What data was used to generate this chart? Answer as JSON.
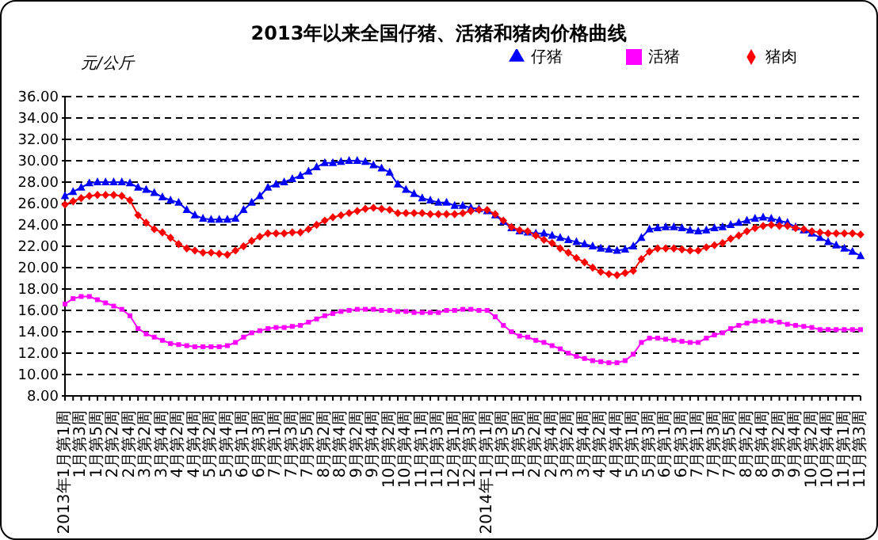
{
  "chart_data": {
    "type": "line",
    "title": "2013年以来全国仔猪、活猪和猪肉价格曲线",
    "ylabel": "元/公斤",
    "categories": [
      "2013年1月第1周",
      null,
      "1月第3周",
      null,
      "1月第5周",
      null,
      "2月第2周",
      null,
      "2月第4周",
      null,
      "3月第2周",
      null,
      "3月第4周",
      null,
      "4月第2周",
      null,
      "4月第4周",
      null,
      "5月第2周",
      null,
      "5月第4周",
      null,
      "6月第1周",
      null,
      "6月第3周",
      null,
      "7月第1周",
      null,
      "7月第3周",
      null,
      "7月第5周",
      null,
      "8月第2周",
      null,
      "8月第4周",
      null,
      "9月第2周",
      null,
      "9月第4周",
      null,
      "10月第2周",
      null,
      "10月第4周",
      null,
      "11月第1周",
      null,
      "11月第3周",
      null,
      "12月第1周",
      null,
      "12月第3周",
      null,
      "2014年1月第1周",
      null,
      "1月第3周",
      null,
      "1月第5周",
      null,
      "2月第2周",
      null,
      "2月第4周",
      null,
      "3月第2周",
      null,
      "3月第4周",
      null,
      "4月第2周",
      null,
      "4月第4周",
      null,
      "5月第1周",
      null,
      "5月第3周",
      null,
      "6月第1周",
      null,
      "6月第3周",
      null,
      "7月第1周",
      null,
      "7月第3周",
      null,
      "7月第5周",
      null,
      "8月第2周",
      null,
      "8月第4周",
      null,
      "9月第2周",
      null,
      "9月第4周",
      null,
      "10月第2周",
      null,
      "10月第4周",
      null,
      "11月第1周",
      null,
      "11月第3周"
    ],
    "series": [
      {
        "name": "仔猪",
        "color": "#0000ff",
        "marker": "triangle",
        "values": [
          26.7,
          27.1,
          27.5,
          27.9,
          28.0,
          28.0,
          28.0,
          28.0,
          27.9,
          27.5,
          27.3,
          27.0,
          26.6,
          26.3,
          26.1,
          25.4,
          24.9,
          24.6,
          24.5,
          24.5,
          24.5,
          24.6,
          25.4,
          26.1,
          26.7,
          27.5,
          27.8,
          28.0,
          28.3,
          28.6,
          29.0,
          29.4,
          29.8,
          29.8,
          29.9,
          30.0,
          30.0,
          29.9,
          29.6,
          29.3,
          28.9,
          27.8,
          27.3,
          26.9,
          26.5,
          26.3,
          26.1,
          26.1,
          25.8,
          25.8,
          25.6,
          25.5,
          25.3,
          24.9,
          24.3,
          23.7,
          23.4,
          23.3,
          23.2,
          23.2,
          23.0,
          22.8,
          22.6,
          22.4,
          22.2,
          22.0,
          21.8,
          21.7,
          21.6,
          21.7,
          22.0,
          22.8,
          23.6,
          23.7,
          23.8,
          23.8,
          23.7,
          23.5,
          23.4,
          23.5,
          23.7,
          23.8,
          24.0,
          24.2,
          24.4,
          24.6,
          24.7,
          24.6,
          24.4,
          24.2,
          23.8,
          23.5,
          23.2,
          22.8,
          22.4,
          22.1,
          21.8,
          21.5,
          21.1
        ]
      },
      {
        "name": "活猪",
        "color": "#ff00ff",
        "marker": "square",
        "values": [
          16.6,
          17.1,
          17.3,
          17.3,
          17.0,
          16.7,
          16.4,
          16.1,
          15.5,
          14.3,
          13.8,
          13.5,
          13.2,
          12.9,
          12.8,
          12.7,
          12.6,
          12.6,
          12.6,
          12.6,
          12.7,
          13.0,
          13.5,
          13.9,
          14.1,
          14.3,
          14.4,
          14.4,
          14.5,
          14.6,
          14.9,
          15.2,
          15.5,
          15.7,
          15.9,
          16.0,
          16.1,
          16.1,
          16.1,
          16.0,
          16.0,
          15.9,
          15.9,
          15.8,
          15.8,
          15.8,
          15.8,
          16.0,
          16.0,
          16.1,
          16.1,
          16.0,
          16.0,
          15.4,
          14.6,
          14.0,
          13.6,
          13.5,
          13.2,
          13.0,
          12.7,
          12.4,
          12.0,
          11.7,
          11.5,
          11.3,
          11.2,
          11.1,
          11.1,
          11.3,
          11.9,
          13.0,
          13.4,
          13.4,
          13.3,
          13.2,
          13.1,
          13.0,
          13.0,
          13.4,
          13.7,
          13.9,
          14.3,
          14.6,
          14.8,
          15.0,
          15.0,
          15.0,
          14.9,
          14.7,
          14.6,
          14.5,
          14.4,
          14.2,
          14.2,
          14.2,
          14.2,
          14.2,
          14.2
        ]
      },
      {
        "name": "猪肉",
        "color": "#ff0000",
        "marker": "diamond",
        "values": [
          25.9,
          26.2,
          26.5,
          26.7,
          26.8,
          26.8,
          26.8,
          26.7,
          26.3,
          24.9,
          24.2,
          23.6,
          23.3,
          22.8,
          22.2,
          21.8,
          21.6,
          21.4,
          21.4,
          21.3,
          21.2,
          21.6,
          22.0,
          22.5,
          22.9,
          23.2,
          23.2,
          23.2,
          23.3,
          23.3,
          23.6,
          24.0,
          24.4,
          24.7,
          24.9,
          25.1,
          25.3,
          25.5,
          25.6,
          25.5,
          25.4,
          25.1,
          25.1,
          25.1,
          25.1,
          25.0,
          25.0,
          25.0,
          25.0,
          25.1,
          25.3,
          25.4,
          25.4,
          25.0,
          24.4,
          23.8,
          23.5,
          23.4,
          23.0,
          22.6,
          22.3,
          21.8,
          21.4,
          20.9,
          20.5,
          20.0,
          19.6,
          19.4,
          19.3,
          19.5,
          19.7,
          20.8,
          21.5,
          21.8,
          21.8,
          21.8,
          21.7,
          21.6,
          21.6,
          21.9,
          22.1,
          22.3,
          22.7,
          23.0,
          23.4,
          23.7,
          23.9,
          24.0,
          23.9,
          23.9,
          23.7,
          23.6,
          23.4,
          23.3,
          23.2,
          23.2,
          23.2,
          23.2,
          23.1
        ]
      }
    ],
    "ylim": [
      8,
      36
    ],
    "yticks": [
      {
        "value": 8,
        "label": "8.00"
      },
      {
        "value": 10,
        "label": "10.00"
      },
      {
        "value": 12,
        "label": "12.00"
      },
      {
        "value": 14,
        "label": "14.00"
      },
      {
        "value": 16,
        "label": "16.00"
      },
      {
        "value": 18,
        "label": "18.00"
      },
      {
        "value": 20,
        "label": "20.00"
      },
      {
        "value": 22,
        "label": "22.00"
      },
      {
        "value": 24,
        "label": "24.00"
      },
      {
        "value": 26,
        "label": "26.00"
      },
      {
        "value": 28,
        "label": "28.00"
      },
      {
        "value": 30,
        "label": "30.00"
      },
      {
        "value": 32,
        "label": "32.00"
      },
      {
        "value": 34,
        "label": "34.00"
      },
      {
        "value": 36,
        "label": "36.00"
      }
    ],
    "grid": "y",
    "legend": "top right"
  }
}
